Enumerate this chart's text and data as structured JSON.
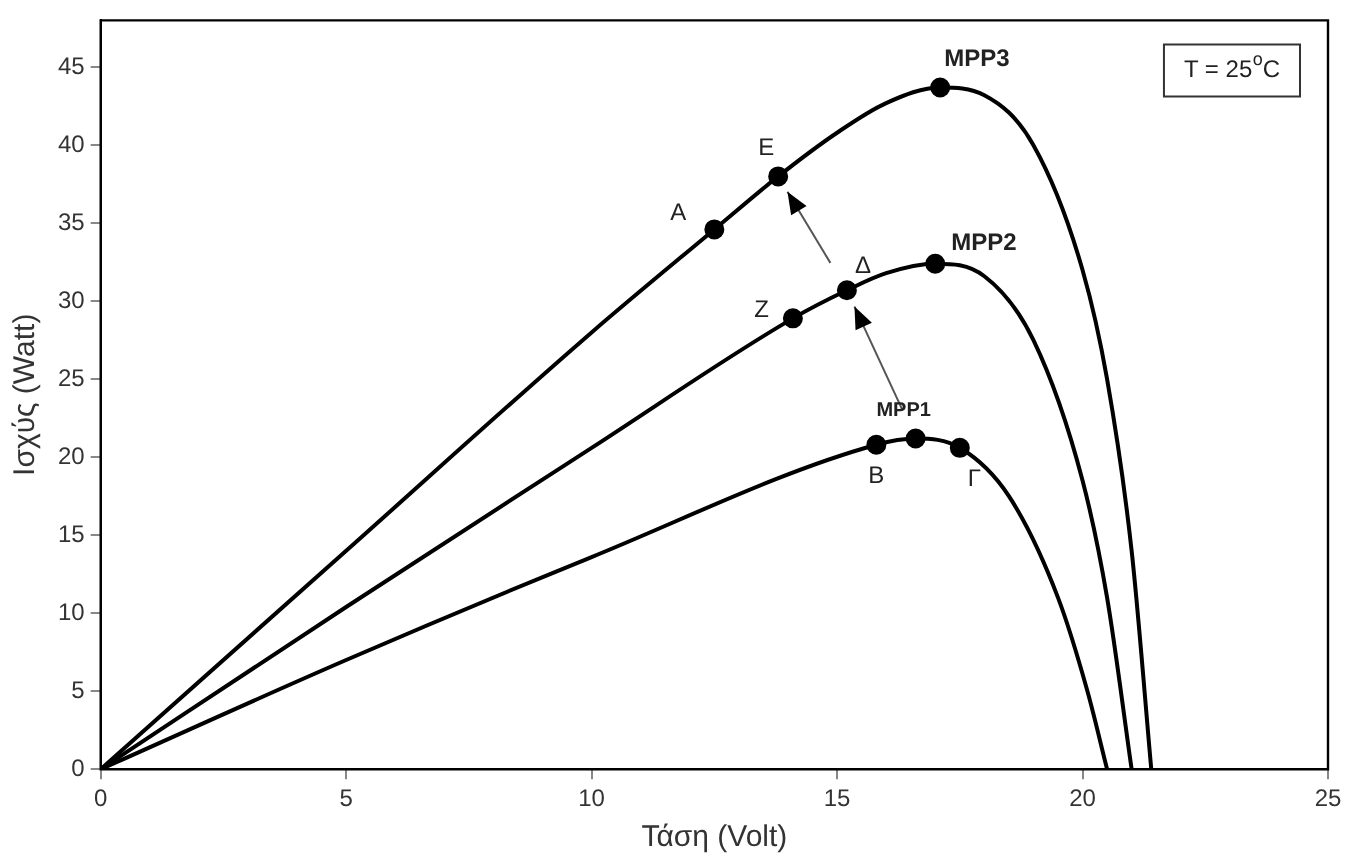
{
  "chart_data": {
    "type": "line",
    "xlabel": "Τάση (Volt)",
    "ylabel": "Ισχύς (Watt)",
    "xlim": [
      0,
      25
    ],
    "xticks": [
      0,
      5,
      10,
      15,
      20,
      25
    ],
    "ylim": [
      0,
      48
    ],
    "yticks": [
      0,
      5,
      10,
      15,
      20,
      25,
      30,
      35,
      40,
      45
    ],
    "grid": false,
    "legend": false,
    "marker": "none",
    "line_style": "solid",
    "series": [
      {
        "type": "line",
        "color": "#000000",
        "x": [
          0,
          5,
          10,
          12.5,
          13.8,
          15,
          16,
          17.1,
          18,
          19,
          20,
          20.5,
          21,
          21.4
        ],
        "values": [
          0,
          14,
          28,
          34.6,
          38,
          40.8,
          42.7,
          43.7,
          43.2,
          40,
          32,
          25,
          14,
          0
        ]
      },
      {
        "type": "line",
        "color": "#000000",
        "x": [
          0,
          5,
          10,
          14.1,
          15.2,
          16,
          17,
          18,
          19,
          20,
          20.5,
          21
        ],
        "values": [
          0,
          10.4,
          20.6,
          28.9,
          30.7,
          31.8,
          32.4,
          31.6,
          27.5,
          18.5,
          11,
          0
        ]
      },
      {
        "type": "line",
        "color": "#000000",
        "x": [
          0,
          5,
          10,
          15.8,
          16.6,
          17.5,
          18.5,
          19.5,
          20.1,
          20.5
        ],
        "values": [
          0,
          7,
          13.6,
          20.8,
          21.2,
          20.6,
          17.5,
          11,
          5,
          0
        ]
      },
      {
        "type": "scatter",
        "color": "#000000",
        "marker": "circle",
        "x": [
          12.5,
          13.8,
          17.1,
          14.1,
          15.2,
          17,
          15.8,
          16.6,
          17.5
        ],
        "values": [
          34.6,
          38,
          43.7,
          28.9,
          30.7,
          32.4,
          20.8,
          21.2,
          20.6
        ]
      }
    ],
    "annotations": [
      {
        "text": "A",
        "x": 12.5,
        "y": 34.6
      },
      {
        "text": "E",
        "x": 13.8,
        "y": 38
      },
      {
        "text": "MPP3",
        "x": 17.1,
        "y": 43.7
      },
      {
        "text": "Z",
        "x": 14.1,
        "y": 28.9
      },
      {
        "text": "Δ",
        "x": 15.2,
        "y": 30.7
      },
      {
        "text": "MPP2",
        "x": 17,
        "y": 32.4
      },
      {
        "text": "B",
        "x": 15.8,
        "y": 20.8
      },
      {
        "text": "MPP1",
        "x": 16.6,
        "y": 21.2
      },
      {
        "text": "Γ",
        "x": 17.5,
        "y": 20.6
      },
      "T = 25$^{o}$C"
    ]
  }
}
